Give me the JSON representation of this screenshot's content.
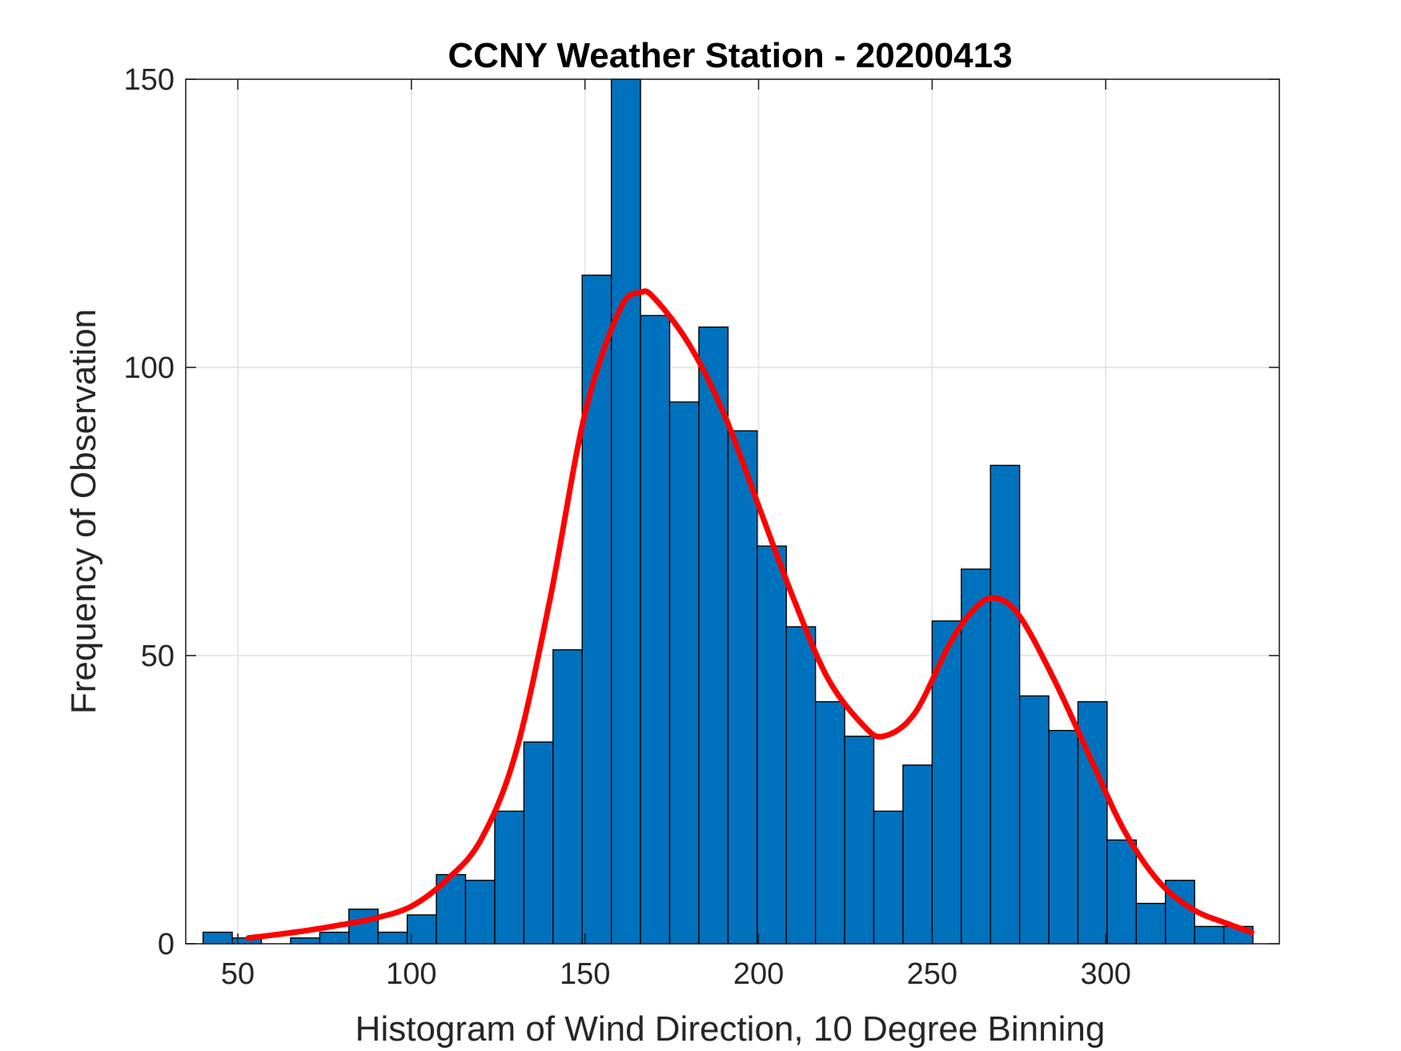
{
  "chart_data": {
    "type": "bar",
    "title": "CCNY Weather Station - 20200413",
    "xlabel": "Histogram of Wind Direction, 10 Degree Binning",
    "ylabel": "Frequency of Observation",
    "xlim": [
      35,
      350
    ],
    "ylim": [
      0,
      150
    ],
    "xticks": [
      50,
      100,
      150,
      200,
      250,
      300
    ],
    "yticks": [
      0,
      50,
      100,
      150
    ],
    "grid": true,
    "bin_width": 8.4,
    "bins": [
      {
        "start": 40.0,
        "count": 2
      },
      {
        "start": 48.4,
        "count": 1
      },
      {
        "start": 56.8,
        "count": 0
      },
      {
        "start": 65.2,
        "count": 1
      },
      {
        "start": 73.6,
        "count": 2
      },
      {
        "start": 82.0,
        "count": 6
      },
      {
        "start": 90.4,
        "count": 2
      },
      {
        "start": 98.8,
        "count": 5
      },
      {
        "start": 107.2,
        "count": 12
      },
      {
        "start": 115.6,
        "count": 11
      },
      {
        "start": 124.0,
        "count": 23
      },
      {
        "start": 132.4,
        "count": 35
      },
      {
        "start": 140.8,
        "count": 51
      },
      {
        "start": 149.2,
        "count": 116
      },
      {
        "start": 157.6,
        "count": 150
      },
      {
        "start": 166.0,
        "count": 109
      },
      {
        "start": 174.4,
        "count": 94
      },
      {
        "start": 182.8,
        "count": 107
      },
      {
        "start": 191.2,
        "count": 89
      },
      {
        "start": 199.6,
        "count": 69
      },
      {
        "start": 208.0,
        "count": 55
      },
      {
        "start": 216.4,
        "count": 42
      },
      {
        "start": 224.8,
        "count": 36
      },
      {
        "start": 233.2,
        "count": 23
      },
      {
        "start": 241.6,
        "count": 31
      },
      {
        "start": 250.0,
        "count": 56
      },
      {
        "start": 258.4,
        "count": 65
      },
      {
        "start": 266.8,
        "count": 83
      },
      {
        "start": 275.2,
        "count": 43
      },
      {
        "start": 283.6,
        "count": 37
      },
      {
        "start": 292.0,
        "count": 42
      },
      {
        "start": 300.4,
        "count": 18
      },
      {
        "start": 308.8,
        "count": 7
      },
      {
        "start": 317.2,
        "count": 11
      },
      {
        "start": 325.6,
        "count": 3
      },
      {
        "start": 334.0,
        "count": 3
      }
    ],
    "fit_curve": {
      "name": "fit",
      "color": "#ff0000",
      "x": [
        53,
        60,
        70,
        80,
        90,
        100,
        110,
        120,
        130,
        140,
        150,
        160,
        166,
        170,
        180,
        190,
        200,
        210,
        220,
        230,
        236,
        245,
        255,
        262,
        268,
        275,
        285,
        295,
        305,
        315,
        325,
        335,
        342
      ],
      "y": [
        1,
        1.5,
        2.3,
        3.3,
        4.5,
        6.5,
        11,
        18,
        33,
        60,
        92,
        110,
        113,
        112,
        104,
        92,
        76,
        60,
        46,
        38,
        36,
        40,
        52,
        58,
        60,
        57,
        46,
        33,
        20,
        11,
        6,
        3.5,
        2
      ]
    },
    "bar_color": "#0072bd",
    "bar_edge_color": "#000000"
  }
}
